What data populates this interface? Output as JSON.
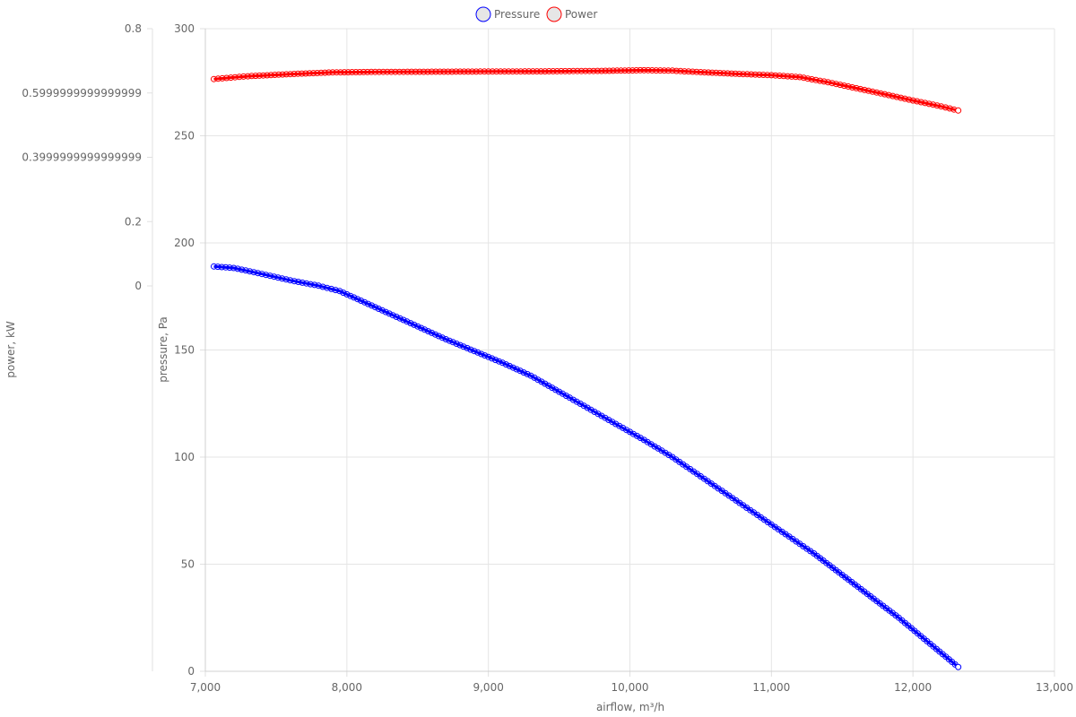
{
  "chart_data": {
    "type": "line",
    "xlabel": "airflow, m³/h",
    "xlim": [
      7000,
      13000
    ],
    "x_ticks": [
      "7,000",
      "8,000",
      "9,000",
      "10,000",
      "11,000",
      "12,000",
      "13,000"
    ],
    "y_axes": {
      "pressure": {
        "label": "pressure, Pa",
        "lim": [
          0,
          300
        ],
        "ticks": [
          "0",
          "50",
          "100",
          "150",
          "200",
          "250",
          "300"
        ]
      },
      "power": {
        "label": "power, kW",
        "ticks": [
          "0",
          "0.2",
          "0.3999999999999999",
          "0.5999999999999999",
          "0.8"
        ]
      }
    },
    "legend": {
      "position": "top-center"
    },
    "series": [
      {
        "name": "Pressure",
        "axis": "pressure",
        "color": "#0000ff",
        "points": [
          [
            7060,
            189
          ],
          [
            7200,
            188.3
          ],
          [
            7400,
            185.5
          ],
          [
            7600,
            182.5
          ],
          [
            7800,
            180
          ],
          [
            7950,
            177.5
          ],
          [
            8100,
            173
          ],
          [
            8300,
            167
          ],
          [
            8500,
            161
          ],
          [
            8700,
            155
          ],
          [
            8900,
            149.5
          ],
          [
            9100,
            144
          ],
          [
            9300,
            138
          ],
          [
            9500,
            130.5
          ],
          [
            9700,
            123
          ],
          [
            9900,
            115.5
          ],
          [
            10100,
            108
          ],
          [
            10300,
            100
          ],
          [
            10500,
            91
          ],
          [
            10700,
            82
          ],
          [
            10900,
            73
          ],
          [
            11100,
            64
          ],
          [
            11300,
            55
          ],
          [
            11500,
            45
          ],
          [
            11700,
            35
          ],
          [
            11900,
            25
          ],
          [
            12100,
            14
          ],
          [
            12320,
            2
          ]
        ]
      },
      {
        "name": "Power",
        "axis": "pressure",
        "color": "#ff0000",
        "points": [
          [
            7060,
            276.5
          ],
          [
            7300,
            277.8
          ],
          [
            7600,
            278.8
          ],
          [
            7900,
            279.6
          ],
          [
            8200,
            279.8
          ],
          [
            8600,
            279.9
          ],
          [
            9000,
            280
          ],
          [
            9400,
            280.1
          ],
          [
            9800,
            280.3
          ],
          [
            10100,
            280.6
          ],
          [
            10300,
            280.4
          ],
          [
            10500,
            279.7
          ],
          [
            10800,
            278.8
          ],
          [
            11000,
            278.3
          ],
          [
            11200,
            277.4
          ],
          [
            11400,
            275
          ],
          [
            11600,
            272.2
          ],
          [
            11800,
            269.4
          ],
          [
            12000,
            266.5
          ],
          [
            12200,
            263.7
          ],
          [
            12320,
            261.8
          ]
        ]
      }
    ]
  }
}
